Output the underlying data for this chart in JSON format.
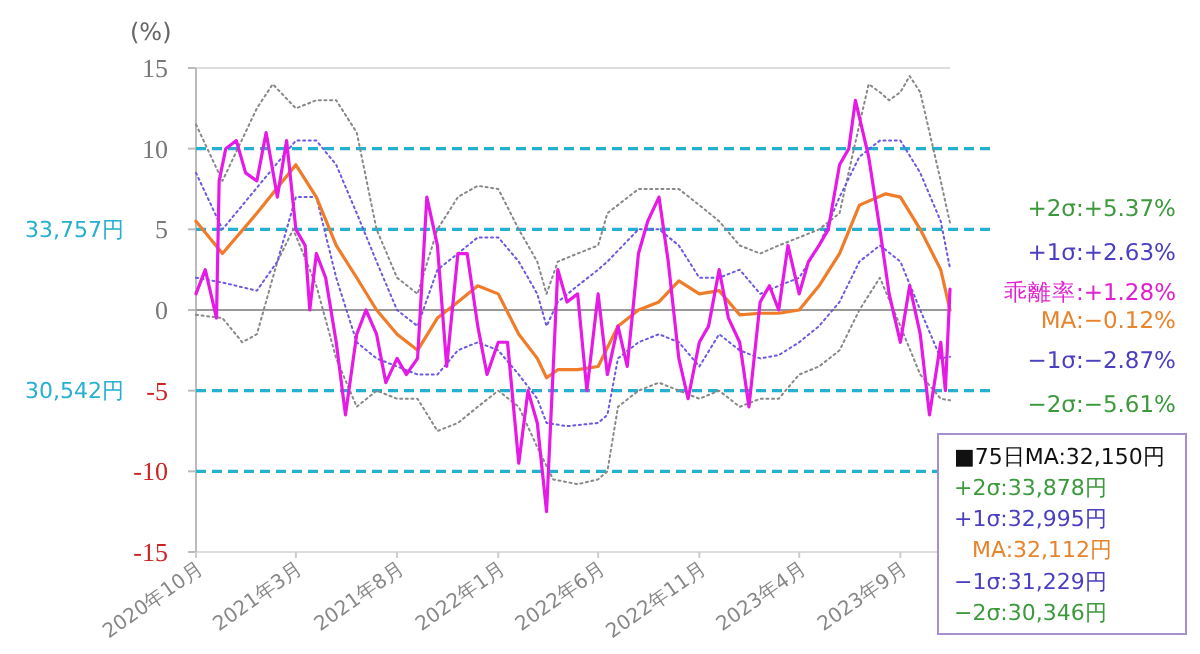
{
  "chart_data": {
    "type": "line",
    "ylabel": "(%)",
    "xlim": [
      "2020-10-01",
      "2023-11-15"
    ],
    "xticks": [
      {
        "value": "2020-10-01",
        "label": "2020年10月"
      },
      {
        "value": "2021-03-01",
        "label": "2021年3月"
      },
      {
        "value": "2021-08-01",
        "label": "2021年8月"
      },
      {
        "value": "2022-01-01",
        "label": "2022年1月"
      },
      {
        "value": "2022-06-01",
        "label": "2022年6月"
      },
      {
        "value": "2022-11-01",
        "label": "2022年11月"
      },
      {
        "value": "2023-04-01",
        "label": "2023年4月"
      },
      {
        "value": "2023-09-01",
        "label": "2023年9月"
      }
    ],
    "ylim": [
      -15,
      15
    ],
    "yticks": [
      15,
      10,
      5,
      0,
      -5,
      -10,
      -15
    ],
    "grid": false,
    "ref_lines": [
      {
        "axis": "y",
        "value": 10,
        "color": "#25b0d0",
        "line_style": "dashed"
      },
      {
        "axis": "y",
        "value": 5,
        "label": "33,757円",
        "color": "#25b0d0",
        "line_style": "dashed"
      },
      {
        "axis": "y",
        "value": 0,
        "color": "#999999",
        "line_style": "solid"
      },
      {
        "axis": "y",
        "value": -5,
        "label": "30,542円",
        "color": "#25b0d0",
        "line_style": "dashed"
      },
      {
        "axis": "y",
        "value": -10,
        "color": "#25b0d0",
        "line_style": "dashed"
      }
    ],
    "series": [
      {
        "color": "#888888",
        "line_style": "dotted",
        "x": [
          "2020-10-01",
          "2020-11-10",
          "2021-01-01",
          "2021-01-25",
          "2021-03-01",
          "2021-04-01",
          "2021-05-01",
          "2021-06-01",
          "2021-07-01",
          "2021-08-01",
          "2021-09-01",
          "2021-10-01",
          "2021-11-01",
          "2021-12-01",
          "2022-01-01",
          "2022-02-01",
          "2022-03-01",
          "2022-03-15",
          "2022-04-01",
          "2022-05-01",
          "2022-06-01",
          "2022-06-15",
          "2022-08-01",
          "2022-09-01",
          "2022-10-01",
          "2022-11-01",
          "2022-12-01",
          "2023-01-01",
          "2023-02-01",
          "2023-03-01",
          "2023-04-01",
          "2023-05-01",
          "2023-06-01",
          "2023-07-01",
          "2023-07-15",
          "2023-08-01",
          "2023-08-15",
          "2023-09-01",
          "2023-09-15",
          "2023-10-01",
          "2023-11-01",
          "2023-11-15"
        ],
        "values": [
          11.5,
          8,
          12.5,
          14,
          12.5,
          13,
          13,
          11,
          5,
          2,
          1,
          5,
          7,
          7.7,
          7.5,
          5,
          3,
          1,
          3,
          3.5,
          4,
          6,
          7.5,
          7.5,
          7.5,
          6.5,
          5.5,
          4,
          3.5,
          4,
          4.5,
          5,
          6,
          11.5,
          14,
          13.5,
          13,
          13.5,
          14.5,
          13.5,
          8,
          5.4
        ]
      },
      {
        "color": "#888888",
        "line_style": "dotted",
        "x": [
          "2020-10-01",
          "2020-11-10",
          "2020-12-10",
          "2021-01-01",
          "2021-02-01",
          "2021-02-25",
          "2021-04-01",
          "2021-05-01",
          "2021-06-01",
          "2021-07-01",
          "2021-08-01",
          "2021-09-01",
          "2021-10-01",
          "2021-11-01",
          "2021-12-01",
          "2022-01-01",
          "2022-02-01",
          "2022-03-01",
          "2022-03-25",
          "2022-05-01",
          "2022-06-01",
          "2022-06-15",
          "2022-07-01",
          "2022-08-01",
          "2022-09-01",
          "2022-10-01",
          "2022-11-01",
          "2022-12-01",
          "2023-01-01",
          "2023-02-01",
          "2023-03-01",
          "2023-04-01",
          "2023-05-01",
          "2023-06-01",
          "2023-07-01",
          "2023-08-01",
          "2023-09-01",
          "2023-10-01",
          "2023-11-01",
          "2023-11-15"
        ],
        "values": [
          -0.3,
          -0.5,
          -2,
          -1.5,
          3,
          5,
          1.5,
          -3,
          -6,
          -5,
          -5.5,
          -5.5,
          -7.5,
          -7,
          -6,
          -5,
          -6,
          -8.5,
          -10.5,
          -10.8,
          -10.5,
          -10,
          -6,
          -5,
          -4.5,
          -5,
          -5.5,
          -5,
          -6,
          -5.5,
          -5.5,
          -4,
          -3.5,
          -2.5,
          0,
          2,
          -1,
          -4,
          -5.5,
          -5.6
        ]
      },
      {
        "color": "#6a5ae0",
        "line_style": "dotted",
        "x": [
          "2020-10-01",
          "2020-11-10",
          "2021-03-01",
          "2021-04-01",
          "2021-05-01",
          "2021-06-01",
          "2021-07-01",
          "2021-08-01",
          "2021-09-01",
          "2021-10-01",
          "2021-11-01",
          "2021-12-01",
          "2022-01-01",
          "2022-02-01",
          "2022-03-01",
          "2022-03-15",
          "2022-04-01",
          "2022-05-01",
          "2022-06-01",
          "2022-06-15",
          "2022-08-01",
          "2022-09-01",
          "2022-10-01",
          "2022-11-01",
          "2022-12-01",
          "2023-01-01",
          "2023-02-01",
          "2023-03-01",
          "2023-04-01",
          "2023-05-01",
          "2023-06-01",
          "2023-07-01",
          "2023-08-01",
          "2023-09-01",
          "2023-10-01",
          "2023-11-01",
          "2023-11-15"
        ],
        "values": [
          8.5,
          5,
          10.5,
          10.5,
          9,
          6,
          3,
          0,
          -1,
          2.5,
          3.5,
          4.5,
          4.5,
          3,
          1,
          -1,
          0.5,
          1.5,
          2.5,
          3,
          5,
          5,
          4,
          2,
          2,
          2.5,
          1,
          1.5,
          2,
          4,
          7,
          9.5,
          10.5,
          10.5,
          8.5,
          5.5,
          2.6
        ]
      },
      {
        "color": "#6a5ae0",
        "line_style": "dotted",
        "x": [
          "2020-10-01",
          "2020-11-10",
          "2021-01-01",
          "2021-02-01",
          "2021-03-01",
          "2021-04-01",
          "2021-05-01",
          "2021-06-01",
          "2021-07-01",
          "2021-08-01",
          "2021-09-01",
          "2021-10-01",
          "2021-11-01",
          "2021-12-01",
          "2022-01-01",
          "2022-02-01",
          "2022-03-01",
          "2022-03-15",
          "2022-04-15",
          "2022-06-01",
          "2022-06-15",
          "2022-07-01",
          "2022-08-01",
          "2022-09-01",
          "2022-10-01",
          "2022-11-01",
          "2022-12-01",
          "2023-01-01",
          "2023-02-01",
          "2023-03-01",
          "2023-04-01",
          "2023-05-01",
          "2023-06-01",
          "2023-07-01",
          "2023-08-01",
          "2023-09-01",
          "2023-10-01",
          "2023-11-01",
          "2023-11-15"
        ],
        "values": [
          2,
          1.7,
          1.2,
          3,
          7,
          7,
          2,
          -2,
          -3,
          -3.5,
          -4,
          -4,
          -2.5,
          -2,
          -2.5,
          -4,
          -5.5,
          -7,
          -7.2,
          -7,
          -6.5,
          -3,
          -2,
          -1.5,
          -2,
          -3.5,
          -1.5,
          -2.5,
          -3,
          -2.8,
          -2,
          -1,
          0.5,
          3,
          4,
          3,
          0,
          -3,
          -2.9
        ]
      },
      {
        "color": "#f07c2a",
        "line_style": "solid",
        "x": [
          "2020-10-01",
          "2020-11-10",
          "2021-01-01",
          "2021-03-01",
          "2021-04-01",
          "2021-05-01",
          "2021-06-01",
          "2021-07-01",
          "2021-08-01",
          "2021-09-01",
          "2021-10-01",
          "2021-11-01",
          "2021-12-01",
          "2022-01-01",
          "2022-02-01",
          "2022-03-01",
          "2022-03-15",
          "2022-04-01",
          "2022-05-01",
          "2022-06-01",
          "2022-07-01",
          "2022-08-01",
          "2022-09-01",
          "2022-10-01",
          "2022-11-01",
          "2022-12-01",
          "2023-01-01",
          "2023-02-01",
          "2023-03-01",
          "2023-04-01",
          "2023-05-01",
          "2023-06-01",
          "2023-07-01",
          "2023-08-10",
          "2023-09-01",
          "2023-10-01",
          "2023-11-01",
          "2023-11-15"
        ],
        "values": [
          5.5,
          3.5,
          6,
          9,
          7,
          4,
          2,
          0,
          -1.5,
          -2.5,
          -0.5,
          0.5,
          1.5,
          1,
          -1.5,
          -3,
          -4.2,
          -3.7,
          -3.7,
          -3.5,
          -1,
          0,
          0.5,
          1.8,
          1,
          1.2,
          -0.3,
          -0.2,
          -0.2,
          0,
          1.5,
          3.5,
          6.5,
          7.2,
          7,
          5,
          2.5,
          0
        ]
      },
      {
        "color": "#e619e6",
        "line_style": "solid",
        "x": [
          "2020-10-01",
          "2020-10-15",
          "2020-11-01",
          "2020-11-05",
          "2020-11-15",
          "2020-12-01",
          "2020-12-15",
          "2021-01-01",
          "2021-01-15",
          "2021-02-01",
          "2021-02-15",
          "2021-03-01",
          "2021-03-15",
          "2021-03-22",
          "2021-04-01",
          "2021-04-15",
          "2021-05-01",
          "2021-05-15",
          "2021-06-01",
          "2021-06-15",
          "2021-07-01",
          "2021-07-15",
          "2021-08-01",
          "2021-08-15",
          "2021-09-01",
          "2021-09-15",
          "2021-10-01",
          "2021-10-15",
          "2021-11-01",
          "2021-11-15",
          "2021-12-01",
          "2021-12-15",
          "2022-01-01",
          "2022-01-15",
          "2022-02-01",
          "2022-02-15",
          "2022-03-01",
          "2022-03-15",
          "2022-04-01",
          "2022-04-15",
          "2022-05-01",
          "2022-05-15",
          "2022-06-01",
          "2022-06-15",
          "2022-07-01",
          "2022-07-15",
          "2022-08-01",
          "2022-08-15",
          "2022-09-01",
          "2022-09-15",
          "2022-10-01",
          "2022-10-15",
          "2022-11-01",
          "2022-11-15",
          "2022-12-01",
          "2022-12-15",
          "2023-01-01",
          "2023-01-15",
          "2023-02-01",
          "2023-02-15",
          "2023-03-01",
          "2023-03-15",
          "2023-04-01",
          "2023-04-15",
          "2023-05-01",
          "2023-05-15",
          "2023-06-01",
          "2023-06-15",
          "2023-06-25",
          "2023-07-15",
          "2023-08-01",
          "2023-08-15",
          "2023-09-01",
          "2023-09-15",
          "2023-10-01",
          "2023-10-15",
          "2023-11-01",
          "2023-11-08",
          "2023-11-15"
        ],
        "values": [
          1,
          2.5,
          -0.5,
          8,
          10,
          10.5,
          8.5,
          8,
          11,
          7,
          10.5,
          5,
          4,
          0,
          3.5,
          2,
          -2,
          -6.5,
          -1.5,
          0,
          -1.5,
          -4.5,
          -3,
          -4,
          -3,
          7,
          4,
          -3.5,
          3.5,
          3.5,
          -1,
          -4,
          -2,
          -2,
          -9.5,
          -5,
          -7,
          -12.5,
          2.5,
          0.5,
          1,
          -5,
          1,
          -4,
          -1,
          -3.5,
          3.5,
          5.5,
          7,
          3,
          -3,
          -5.5,
          -2,
          -1,
          2.5,
          -0.5,
          -2,
          -6,
          0.5,
          1.5,
          0,
          4,
          1,
          3,
          4,
          5,
          9,
          10,
          13,
          9.5,
          5,
          1,
          -2,
          1.5,
          -1.5,
          -6.5,
          -2,
          -5,
          1.3
        ]
      }
    ],
    "annotations": [
      "+2σ:+5.37%",
      "+1σ:+2.63%",
      "乖離率:+1.28%",
      "MA:−0.12%",
      "−1σ:−2.87%",
      "−2σ:−5.61%",
      "■75日MA:32,150円",
      "+2σ:33,878円",
      "+1σ:32,995円",
      "MA:32,112円",
      "−1σ:31,229円",
      "−2σ:30,346円"
    ]
  }
}
